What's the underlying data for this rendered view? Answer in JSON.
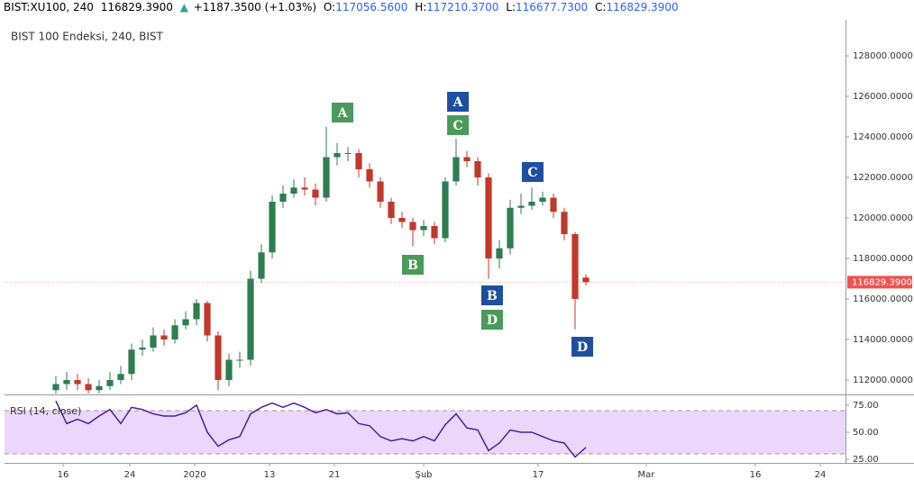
{
  "header": {
    "symbol": "BIST:XU100, 240",
    "last": "116829.3900",
    "arrow": "▲",
    "change": "+1187.3500 (+1.03%)",
    "o_label": "O:",
    "o": "117056.5600",
    "h_label": "H:",
    "h": "117210.3700",
    "l_label": "L:",
    "l": "116677.7300",
    "c_label": "C:",
    "c": "116829.3900"
  },
  "chart_data": [
    {
      "type": "candlestick",
      "title": "BIST 100 Endeksi, 240, BIST",
      "up_color": "#2e7d4f",
      "down_color": "#c0392b",
      "open": [
        111500,
        111800,
        112000,
        111800,
        111500,
        111700,
        112000,
        112300,
        113500,
        113600,
        114200,
        114000,
        114700,
        115000,
        115800,
        114200,
        112000,
        113000,
        113000,
        117000,
        118300,
        120800,
        121200,
        121500,
        121400,
        121000,
        123000,
        123200,
        123200,
        122400,
        121800,
        120800,
        120000,
        119800,
        119400,
        119600,
        119000,
        121800,
        123000,
        122800,
        122000,
        118000,
        118500,
        120500,
        120600,
        120800,
        121000,
        120300,
        119200,
        117056.56
      ],
      "high": [
        112200,
        112400,
        112300,
        112100,
        112000,
        112400,
        112700,
        113800,
        114000,
        114600,
        114500,
        115000,
        115400,
        116000,
        115900,
        114400,
        113300,
        113400,
        117400,
        118700,
        121100,
        121600,
        121900,
        122000,
        121700,
        124500,
        123700,
        123500,
        123400,
        122700,
        122000,
        121000,
        120300,
        120000,
        119900,
        119800,
        122000,
        123900,
        123300,
        123000,
        122200,
        118900,
        120900,
        121200,
        121500,
        121300,
        121200,
        120500,
        119300,
        117210.37
      ],
      "low": [
        111200,
        111500,
        111500,
        111200,
        111300,
        111500,
        111800,
        112000,
        113200,
        113400,
        113700,
        113800,
        114500,
        114700,
        113900,
        111500,
        111700,
        112600,
        112700,
        116800,
        118000,
        120500,
        121000,
        121100,
        120600,
        120800,
        122600,
        122800,
        122000,
        121500,
        120500,
        119700,
        119500,
        118600,
        119100,
        118700,
        118800,
        121600,
        122500,
        121600,
        117000,
        117500,
        118200,
        120200,
        120400,
        120600,
        120000,
        118900,
        114500,
        116677.73
      ],
      "close": [
        111800,
        112000,
        111800,
        111500,
        111700,
        112000,
        112300,
        113500,
        113600,
        114200,
        114000,
        114700,
        115000,
        115800,
        114200,
        112000,
        113000,
        113000,
        117000,
        118300,
        120800,
        121200,
        121500,
        121400,
        121000,
        123000,
        123200,
        123200,
        122400,
        121800,
        120800,
        120000,
        119800,
        119400,
        119600,
        119000,
        121800,
        123000,
        122800,
        122000,
        118000,
        118500,
        120500,
        120600,
        120800,
        121000,
        120300,
        119200,
        116000,
        116829.39
      ],
      "ylim": [
        111333,
        129778
      ],
      "yticks": [
        {
          "value": 112000,
          "label": "112000.0000"
        },
        {
          "value": 114000,
          "label": "114000.0000"
        },
        {
          "value": 116000,
          "label": "116000.0000"
        },
        {
          "value": 118000,
          "label": "118000.0000"
        },
        {
          "value": 120000,
          "label": "120000.0000"
        },
        {
          "value": 122000,
          "label": "122000.0000"
        },
        {
          "value": 124000,
          "label": "124000.0000"
        },
        {
          "value": 126000,
          "label": "126000.0000"
        },
        {
          "value": 128000,
          "label": "128000.0000"
        }
      ],
      "last_price": {
        "value": 116829.39,
        "label": "116829.3900",
        "color": "#ef5350"
      },
      "xlim": [
        -4.75,
        73
      ],
      "xticks": [
        {
          "value": 0.67,
          "label": "16"
        },
        {
          "value": 6.83,
          "label": "24"
        },
        {
          "value": 12.83,
          "label": "2020"
        },
        {
          "value": 19.75,
          "label": "13"
        },
        {
          "value": 25.75,
          "label": "21"
        },
        {
          "value": 34,
          "label": "Şub"
        },
        {
          "value": 44.58,
          "label": "17"
        },
        {
          "value": 54.58,
          "label": "Mar"
        },
        {
          "value": 64.67,
          "label": "16"
        },
        {
          "value": 70.67,
          "label": "24"
        }
      ],
      "annotations": [
        {
          "text": "A",
          "x": 26.5,
          "y": 125200,
          "color": "#4a9a5a"
        },
        {
          "text": "B",
          "x": 33,
          "y": 117689,
          "color": "#4a9a5a"
        },
        {
          "text": "C",
          "x": 37.17,
          "y": 124578,
          "color": "#4a9a5a"
        },
        {
          "text": "D",
          "x": 40.33,
          "y": 114978,
          "color": "#4a9a5a"
        },
        {
          "text": "A",
          "x": 37.17,
          "y": 125733,
          "color": "#1e4fa0"
        },
        {
          "text": "B",
          "x": 40.33,
          "y": 116178,
          "color": "#1e4fa0"
        },
        {
          "text": "C",
          "x": 44.08,
          "y": 122267,
          "color": "#1e4fa0"
        },
        {
          "text": "D",
          "x": 48.67,
          "y": 113644,
          "color": "#1e4fa0"
        }
      ]
    },
    {
      "type": "line",
      "title": "RSI (14, close)",
      "color": "#4a1f9e",
      "band": [
        30,
        70
      ],
      "band_color": "#ead7fb",
      "values": [
        79,
        58,
        62,
        58,
        65,
        71,
        58,
        73,
        71,
        67,
        65,
        65,
        68,
        75,
        50,
        37,
        43,
        46,
        67,
        73,
        77,
        73,
        77,
        73,
        68,
        71,
        67,
        68,
        58,
        56,
        46,
        42,
        44,
        42,
        46,
        42,
        57,
        67,
        54,
        52,
        33,
        40,
        52,
        50,
        50,
        46,
        42,
        40,
        27,
        36
      ],
      "ylim": [
        23.3,
        83.3
      ],
      "yticks": [
        {
          "value": 25,
          "label": "25.00"
        },
        {
          "value": 50,
          "label": "50.00"
        },
        {
          "value": 75,
          "label": "75.00"
        }
      ],
      "xlim": [
        -4.75,
        73
      ]
    }
  ]
}
